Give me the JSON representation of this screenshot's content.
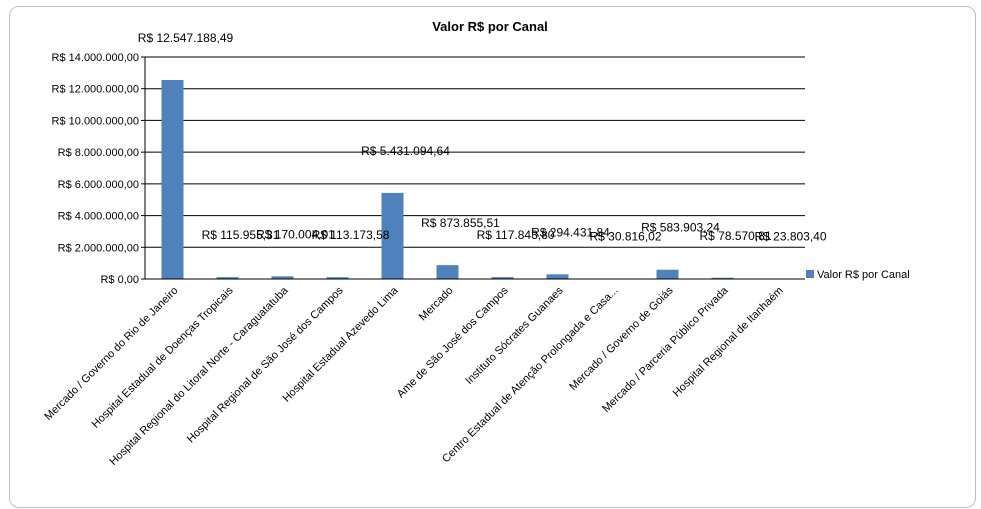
{
  "chart_data": {
    "type": "bar",
    "title": "Valor R$ por Canal",
    "categories": [
      "Mercado / Governo do Rio de Janeiro",
      "Hospital Estadual de Doenças Tropicais",
      "Hospital Regional do Litoral Norte - Caraguatatuba",
      "Hospital Regional de São José dos Campos",
      "Hospital Estadual Azevedo Lima",
      "Mercado",
      "Ame de São José dos Campos",
      "Instituto Sócrates Guanaes",
      "Centro Estadual de Atenção Prolongada e Casa...",
      "Mercado / Governo de Goiás",
      "Mercado / Parceria Público Privada",
      "Hospital Regional de Itanhaém"
    ],
    "series": [
      {
        "name": "Valor R$ por Canal",
        "color": "#4f81bd",
        "values": [
          12547188.49,
          115955.31,
          170004.01,
          113173.58,
          5431094.64,
          873855.51,
          117843.8,
          294431.84,
          30816.02,
          583903.24,
          78570.81,
          23803.4
        ],
        "data_labels": [
          "R$ 12.547.188,49",
          "R$ 115.955,31",
          "R$ 170.004,01",
          "R$ 113.173,58",
          "R$ 5.431.094,64",
          "R$ 873.855,51",
          "R$ 117.843,80",
          "R$ 294.431,84",
          "R$ 30.816,02",
          "R$ 583.903,24",
          "R$ 78.570,81",
          "R$ 23.803,40"
        ]
      }
    ],
    "y_ticks": [
      0,
      2000000,
      4000000,
      6000000,
      8000000,
      10000000,
      12000000,
      14000000
    ],
    "y_tick_labels": [
      "R$ 0,00",
      "R$ 2.000.000,00",
      "R$ 4.000.000,00",
      "R$ 6.000.000,00",
      "R$ 8.000.000,00",
      "R$ 10.000.000,00",
      "R$ 12.000.000,00",
      "R$ 14.000.000,00"
    ],
    "ylim": [
      0,
      14000000
    ],
    "grid": true,
    "legend": "right"
  }
}
